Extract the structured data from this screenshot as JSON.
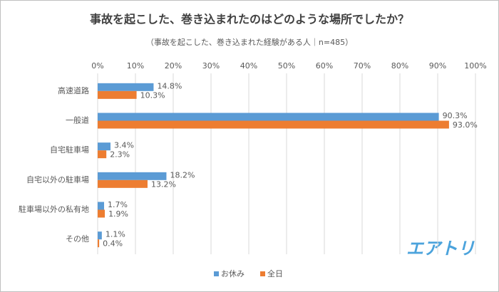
{
  "chart_data": {
    "type": "bar",
    "orientation": "horizontal",
    "title": "事故を起こした、巻き込まれたのはどのような場所でしたか？",
    "subtitle": "（事故を起こした、巻き込まれた経験がある人｜n=485）",
    "categories": [
      "高速道路",
      "一般道",
      "自宅駐車場",
      "自宅以外の駐車場",
      "駐車場以外の私有地",
      "その他"
    ],
    "series": [
      {
        "name": "お休み",
        "color": "#5b9bd5",
        "values": [
          14.8,
          90.3,
          3.4,
          18.2,
          1.7,
          1.1
        ],
        "value_labels": [
          "14.8%",
          "90.3%",
          "3.4%",
          "18.2%",
          "1.7%",
          "1.1%"
        ]
      },
      {
        "name": "全日",
        "color": "#ed7d31",
        "values": [
          10.3,
          93.0,
          2.3,
          13.2,
          1.9,
          0.4
        ],
        "value_labels": [
          "10.3%",
          "93.0%",
          "2.3%",
          "13.2%",
          "1.9%",
          "0.4%"
        ]
      }
    ],
    "xlim": [
      0,
      100
    ],
    "xticks": [
      {
        "value": 0,
        "label": "0%"
      },
      {
        "value": 10,
        "label": "10%"
      },
      {
        "value": 20,
        "label": "20%"
      },
      {
        "value": 30,
        "label": "30%"
      },
      {
        "value": 40,
        "label": "40%"
      },
      {
        "value": 50,
        "label": "50%"
      },
      {
        "value": 60,
        "label": "60%"
      },
      {
        "value": 70,
        "label": "70%"
      },
      {
        "value": 80,
        "label": "80%"
      },
      {
        "value": 90,
        "label": "90%"
      },
      {
        "value": 100,
        "label": "100%"
      }
    ],
    "grid": true,
    "legend": "bottom",
    "logo": "エアトリ"
  }
}
